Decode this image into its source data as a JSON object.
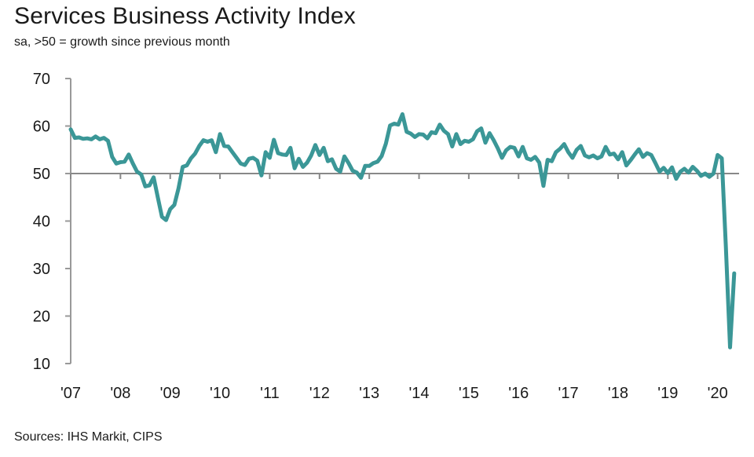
{
  "title": "Services Business Activity Index",
  "subtitle": "sa, >50 = growth since previous month",
  "source": "Sources: IHS Markit, CIPS",
  "colors": {
    "line": "#3b9797",
    "axis": "#999999",
    "reference_line": "#888888",
    "text": "#1a1a1a"
  },
  "chart_data": {
    "type": "line",
    "title": "Services Business Activity Index",
    "subtitle": "sa, >50 = growth since previous month",
    "xlabel": "",
    "ylabel": "",
    "ylim": [
      10,
      70
    ],
    "yticks": [
      "10",
      "20",
      "30",
      "40",
      "50",
      "60",
      "70"
    ],
    "xticks": [
      "'07",
      "'08",
      "'09",
      "'10",
      "'11",
      "'12",
      "'13",
      "'14",
      "'15",
      "'16",
      "'17",
      "'18",
      "'19",
      "'20"
    ],
    "reference_line": 50,
    "grid": false,
    "x_start": "2007-01",
    "series": [
      {
        "name": "",
        "values": [
          59.3,
          57.5,
          57.6,
          57.3,
          57.4,
          57.2,
          57.8,
          57.2,
          57.5,
          56.9,
          53.5,
          52.1,
          52.4,
          52.5,
          54.0,
          52.1,
          50.4,
          49.8,
          47.3,
          47.5,
          49.2,
          45.0,
          40.9,
          40.2,
          42.5,
          43.4,
          46.9,
          51.4,
          51.7,
          53.2,
          54.2,
          55.8,
          57.0,
          56.7,
          57.0,
          54.5,
          58.3,
          55.8,
          55.7,
          54.5,
          53.3,
          52.1,
          51.8,
          53.1,
          53.3,
          52.7,
          49.6,
          54.5,
          53.3,
          57.1,
          54.3,
          54.0,
          53.9,
          55.4,
          51.1,
          53.1,
          51.4,
          52.3,
          53.8,
          56.0,
          53.9,
          55.4,
          52.6,
          53.0,
          51.0,
          50.4,
          53.6,
          52.2,
          50.6,
          50.2,
          49.1,
          51.6,
          51.6,
          52.2,
          52.5,
          53.7,
          56.3,
          60.1,
          60.5,
          60.3,
          62.5,
          58.8,
          58.4,
          57.7,
          58.3,
          58.2,
          57.4,
          58.7,
          58.5,
          60.3,
          59.0,
          58.3,
          55.7,
          58.3,
          56.2,
          56.9,
          56.7,
          57.2,
          58.9,
          59.5,
          56.5,
          58.5,
          57.0,
          55.3,
          53.3,
          54.9,
          55.6,
          55.4,
          53.6,
          55.6,
          53.2,
          52.9,
          53.5,
          52.3,
          47.4,
          52.9,
          52.6,
          54.5,
          55.2,
          56.2,
          54.5,
          53.3,
          55.0,
          55.8,
          53.8,
          53.4,
          53.8,
          53.2,
          53.6,
          55.6,
          54.0,
          54.2,
          53.0,
          54.5,
          51.7,
          52.8,
          54.0,
          55.1,
          53.5,
          54.3,
          53.9,
          52.2,
          50.4,
          51.2,
          50.1,
          51.3,
          48.9,
          50.4,
          51.0,
          50.2,
          51.4,
          50.6,
          49.5,
          50.0,
          49.3,
          50.0,
          53.9,
          53.2,
          34.5,
          13.4,
          29.0
        ]
      }
    ]
  }
}
